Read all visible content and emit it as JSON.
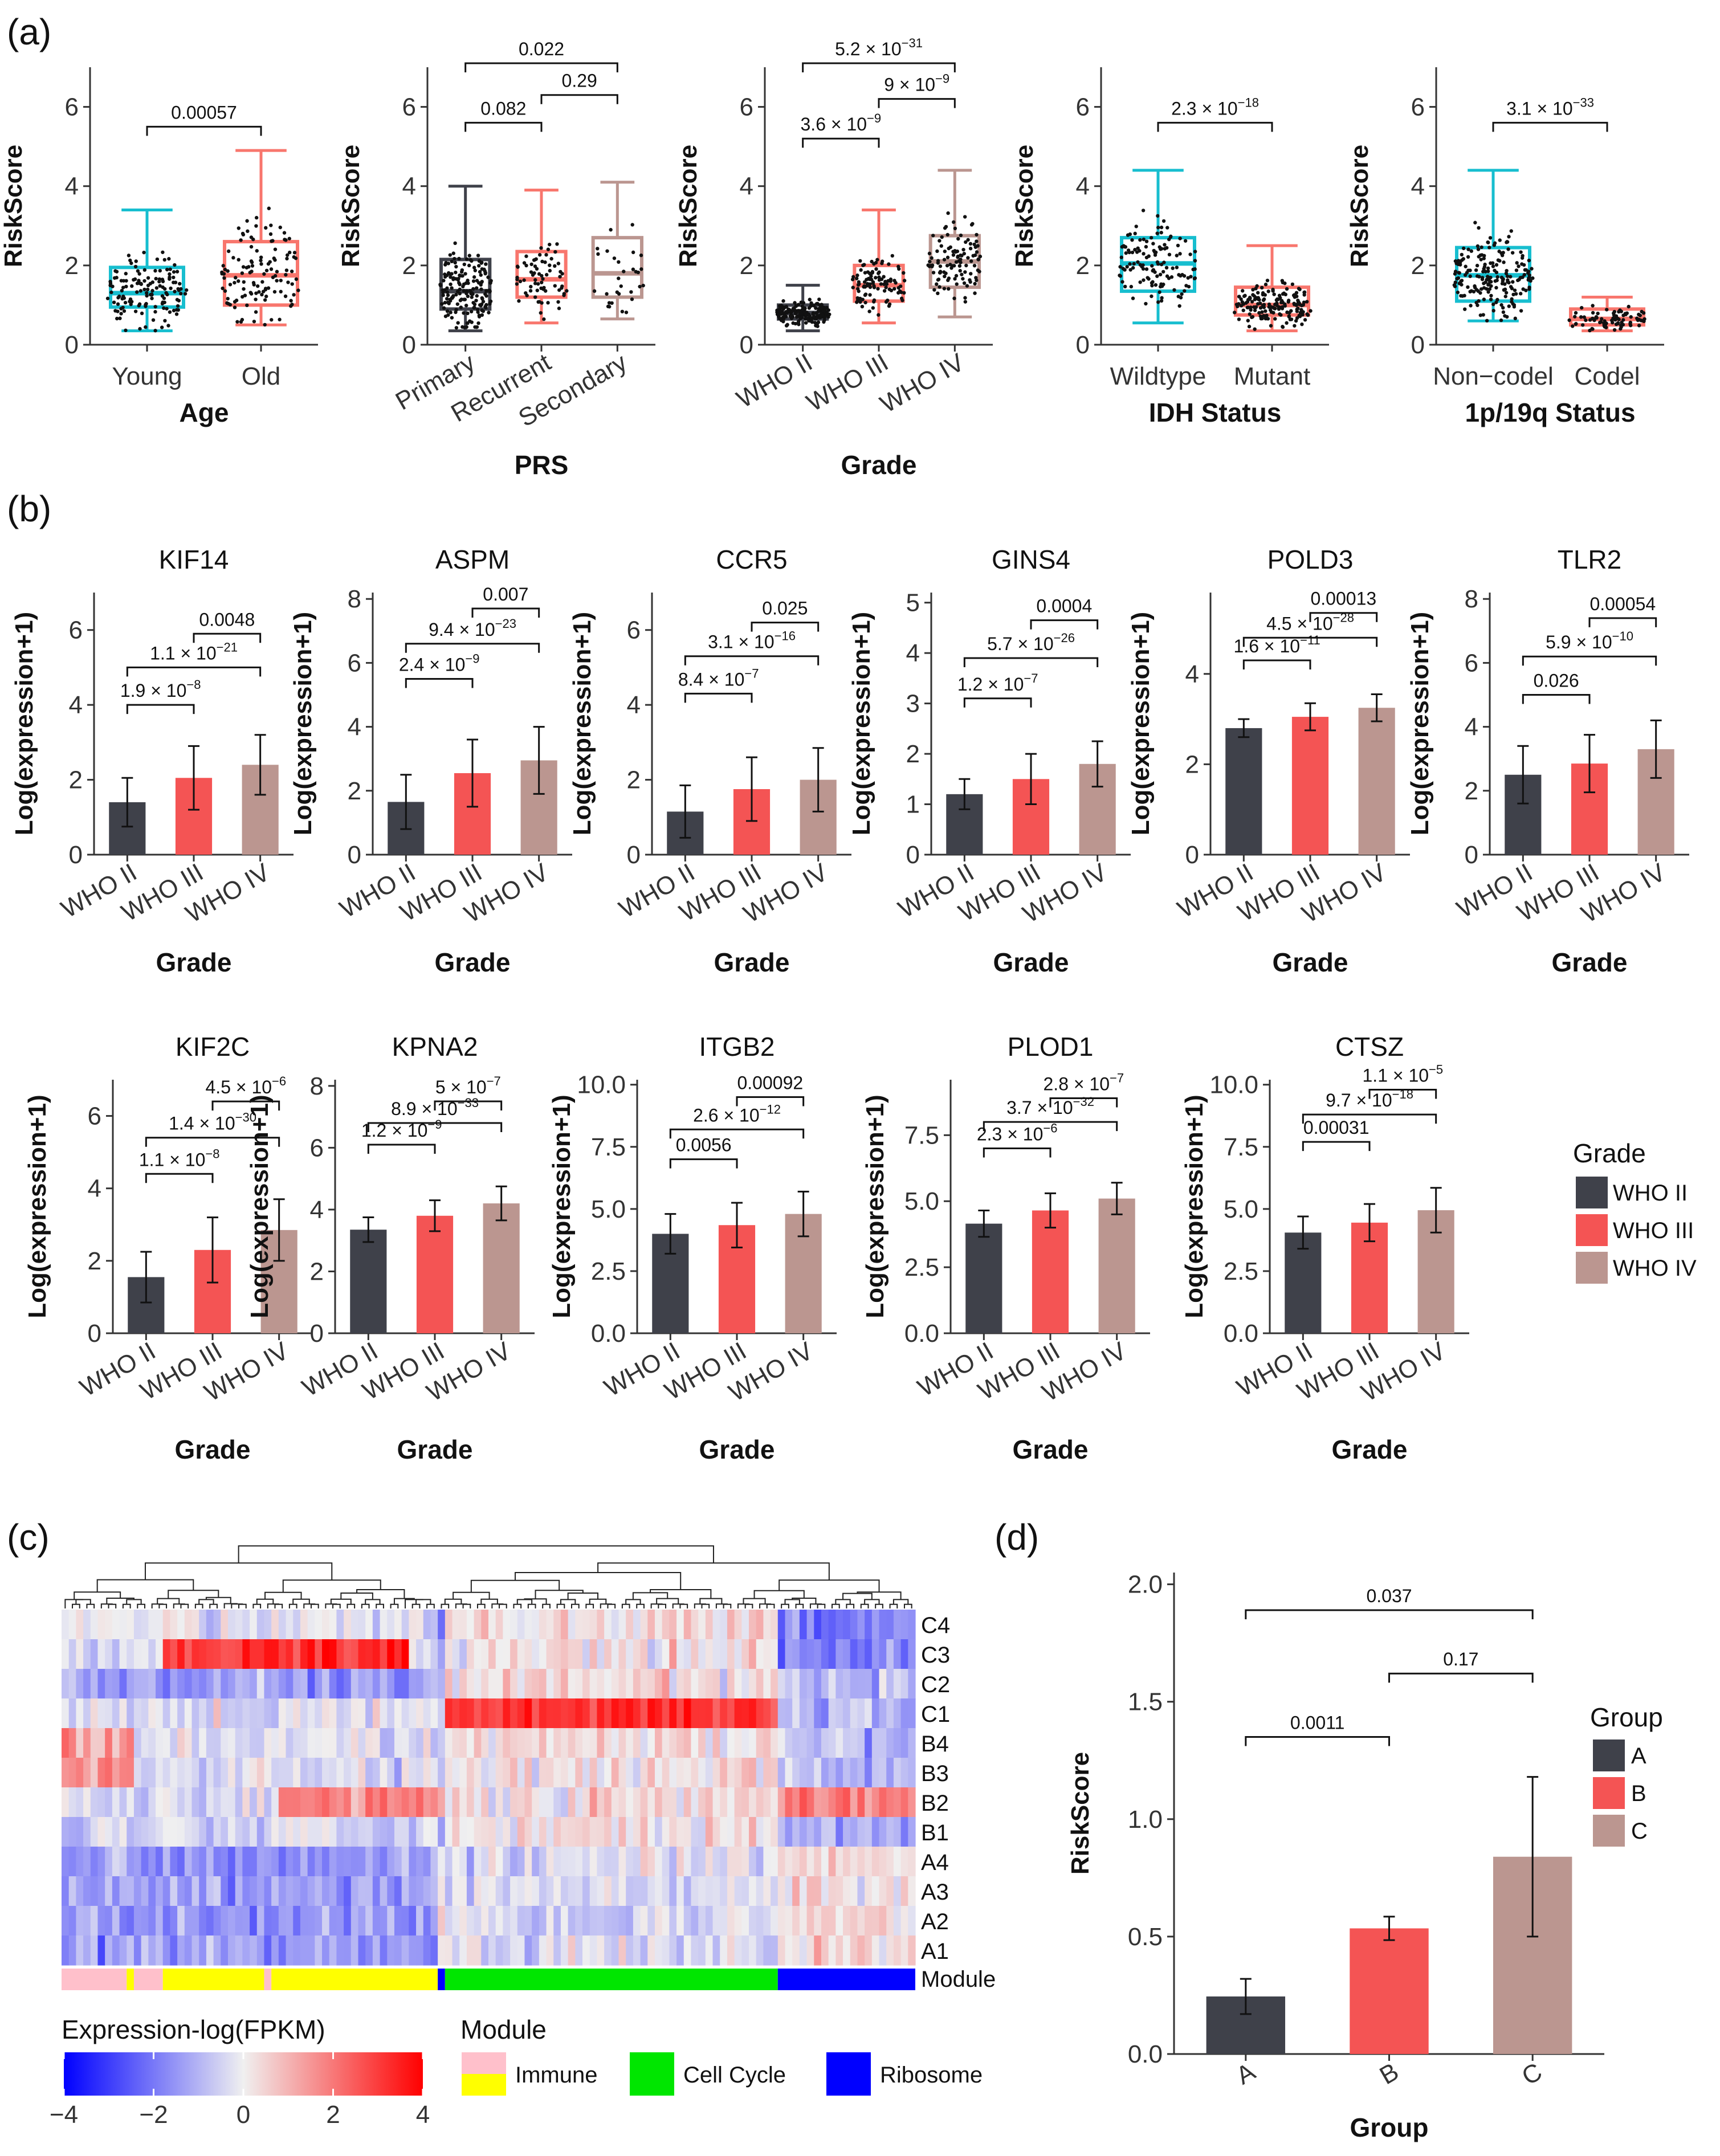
{
  "panel_labels": [
    "(a)",
    "(b)",
    "(c)",
    "(d)"
  ],
  "colors": {
    "teal": "#17becf",
    "coral": "#f8766d",
    "dark": "#3f414a",
    "red": "#f45454",
    "tan": "#bb9690",
    "heat_low": "#0000ff",
    "heat_mid": "#f0f0f0",
    "heat_high": "#ff0000",
    "immune": "#ffc0cb",
    "immune2": "#ffff00",
    "cellcycle": "#00e600",
    "ribosome": "#0000ff"
  },
  "chart_data": [
    {
      "id": "a1",
      "type": "box",
      "ylabel": "RiskScore",
      "xlabel": "Age",
      "ylim": [
        0,
        7
      ],
      "yticks": [
        0,
        2,
        4,
        6
      ],
      "categories": [
        "Young",
        "Old"
      ],
      "xrot": false,
      "box_colors": [
        "teal",
        "coral"
      ],
      "boxes": [
        {
          "min": 0.35,
          "q1": 0.95,
          "median": 1.3,
          "q3": 1.95,
          "max": 3.4,
          "n": 140
        },
        {
          "min": 0.5,
          "q1": 1.0,
          "median": 1.75,
          "q3": 2.6,
          "max": 4.9,
          "n": 120
        }
      ],
      "comparisons": [
        {
          "a": 0,
          "b": 1,
          "y": 5.5,
          "label": "0.00057"
        }
      ]
    },
    {
      "id": "a2",
      "type": "box",
      "ylabel": "RiskScore",
      "xlabel": "PRS",
      "ylim": [
        0,
        7
      ],
      "yticks": [
        0,
        2,
        4,
        6
      ],
      "categories": [
        "Primary",
        "Recurrent",
        "Secondary"
      ],
      "xrot": true,
      "box_colors": [
        "dark",
        "coral",
        "tan"
      ],
      "boxes": [
        {
          "min": 0.35,
          "q1": 0.9,
          "median": 1.35,
          "q3": 2.15,
          "max": 4.0,
          "n": 170
        },
        {
          "min": 0.55,
          "q1": 1.2,
          "median": 1.65,
          "q3": 2.35,
          "max": 3.9,
          "n": 70
        },
        {
          "min": 0.65,
          "q1": 1.2,
          "median": 1.8,
          "q3": 2.7,
          "max": 4.1,
          "n": 30
        }
      ],
      "comparisons": [
        {
          "a": 0,
          "b": 1,
          "y": 5.6,
          "label": "0.082"
        },
        {
          "a": 1,
          "b": 2,
          "y": 6.3,
          "label": "0.29"
        },
        {
          "a": 0,
          "b": 2,
          "y": 7.1,
          "label": "0.022"
        }
      ]
    },
    {
      "id": "a3",
      "type": "box",
      "ylabel": "RiskScore",
      "xlabel": "Grade",
      "ylim": [
        0,
        7
      ],
      "yticks": [
        0,
        2,
        4,
        6
      ],
      "categories": [
        "WHO II",
        "WHO III",
        "WHO IV"
      ],
      "xrot": true,
      "box_colors": [
        "dark",
        "coral",
        "tan"
      ],
      "boxes": [
        {
          "min": 0.35,
          "q1": 0.65,
          "median": 0.8,
          "q3": 1.0,
          "max": 1.5,
          "n": 170
        },
        {
          "min": 0.55,
          "q1": 1.1,
          "median": 1.5,
          "q3": 2.0,
          "max": 3.4,
          "n": 100
        },
        {
          "min": 0.7,
          "q1": 1.45,
          "median": 2.1,
          "q3": 2.75,
          "max": 4.4,
          "n": 110
        }
      ],
      "comparisons": [
        {
          "a": 0,
          "b": 1,
          "y": 5.2,
          "label": "3.6 × 10",
          "exp": "−9"
        },
        {
          "a": 1,
          "b": 2,
          "y": 6.2,
          "label": "9 × 10",
          "exp": "−9"
        },
        {
          "a": 0,
          "b": 2,
          "y": 7.1,
          "label": "5.2 × 10",
          "exp": "−31"
        }
      ]
    },
    {
      "id": "a4",
      "type": "box",
      "ylabel": "RiskScore",
      "xlabel": "IDH Status",
      "ylim": [
        0,
        7
      ],
      "yticks": [
        0,
        2,
        4,
        6
      ],
      "categories": [
        "Wildtype",
        "Mutant"
      ],
      "xrot": false,
      "box_colors": [
        "teal",
        "coral"
      ],
      "boxes": [
        {
          "min": 0.55,
          "q1": 1.35,
          "median": 2.05,
          "q3": 2.7,
          "max": 4.4,
          "n": 130
        },
        {
          "min": 0.35,
          "q1": 0.75,
          "median": 1.0,
          "q3": 1.45,
          "max": 2.5,
          "n": 170
        }
      ],
      "comparisons": [
        {
          "a": 0,
          "b": 1,
          "y": 5.6,
          "label": "2.3 × 10",
          "exp": "−18"
        }
      ]
    },
    {
      "id": "a5",
      "type": "box",
      "ylabel": "RiskScore",
      "xlabel": "1p/19q Status",
      "ylim": [
        0,
        7
      ],
      "yticks": [
        0,
        2,
        4,
        6
      ],
      "categories": [
        "Non−codel",
        "Codel"
      ],
      "xrot": false,
      "box_colors": [
        "teal",
        "coral"
      ],
      "boxes": [
        {
          "min": 0.6,
          "q1": 1.1,
          "median": 1.75,
          "q3": 2.45,
          "max": 4.4,
          "n": 200
        },
        {
          "min": 0.35,
          "q1": 0.5,
          "median": 0.65,
          "q3": 0.9,
          "max": 1.2,
          "n": 80
        }
      ],
      "comparisons": [
        {
          "a": 0,
          "b": 1,
          "y": 5.6,
          "label": "3.1 × 10",
          "exp": "−33"
        }
      ]
    },
    {
      "id": "b1",
      "type": "bar",
      "title": "KIF14",
      "ylabel": "Log(expression+1)",
      "xlabel": "Grade",
      "ylim": [
        0,
        7
      ],
      "yticks": [
        0,
        2,
        4,
        6
      ],
      "categories": [
        "WHO II",
        "WHO III",
        "WHO IV"
      ],
      "values": [
        1.4,
        2.05,
        2.4
      ],
      "err": [
        0.65,
        0.85,
        0.8
      ],
      "comparisons": [
        {
          "a": 0,
          "b": 1,
          "y": 4.0,
          "label": "1.9 × 10",
          "exp": "−8"
        },
        {
          "a": 0,
          "b": 2,
          "y": 5.0,
          "label": "1.1 × 10",
          "exp": "−21"
        },
        {
          "a": 1,
          "b": 2,
          "y": 5.9,
          "label": "0.0048"
        }
      ]
    },
    {
      "id": "b2",
      "type": "bar",
      "title": "ASPM",
      "ylabel": "Log(expression+1)",
      "xlabel": "Grade",
      "ylim": [
        0,
        8.2
      ],
      "yticks": [
        0,
        2,
        4,
        6,
        8
      ],
      "categories": [
        "WHO II",
        "WHO III",
        "WHO IV"
      ],
      "values": [
        1.65,
        2.55,
        2.95
      ],
      "err": [
        0.85,
        1.05,
        1.05
      ],
      "comparisons": [
        {
          "a": 0,
          "b": 1,
          "y": 5.5,
          "label": "2.4 × 10",
          "exp": "−9"
        },
        {
          "a": 0,
          "b": 2,
          "y": 6.6,
          "label": "9.4 × 10",
          "exp": "−23"
        },
        {
          "a": 1,
          "b": 2,
          "y": 7.7,
          "label": "0.007"
        }
      ]
    },
    {
      "id": "b3",
      "type": "bar",
      "title": "CCR5",
      "ylabel": "Log(expression+1)",
      "xlabel": "Grade",
      "ylim": [
        0,
        7
      ],
      "yticks": [
        0,
        2,
        4,
        6
      ],
      "categories": [
        "WHO II",
        "WHO III",
        "WHO IV"
      ],
      "values": [
        1.15,
        1.75,
        2.0
      ],
      "err": [
        0.7,
        0.85,
        0.85
      ],
      "comparisons": [
        {
          "a": 0,
          "b": 1,
          "y": 4.3,
          "label": "8.4 × 10",
          "exp": "−7"
        },
        {
          "a": 0,
          "b": 2,
          "y": 5.3,
          "label": "3.1 × 10",
          "exp": "−16"
        },
        {
          "a": 1,
          "b": 2,
          "y": 6.2,
          "label": "0.025"
        }
      ]
    },
    {
      "id": "b4",
      "type": "bar",
      "title": "GINS4",
      "ylabel": "Log(expression+1)",
      "xlabel": "Grade",
      "ylim": [
        0,
        5.2
      ],
      "yticks": [
        0,
        1,
        2,
        3,
        4,
        5
      ],
      "categories": [
        "WHO II",
        "WHO III",
        "WHO IV"
      ],
      "values": [
        1.2,
        1.5,
        1.8
      ],
      "err": [
        0.3,
        0.5,
        0.45
      ],
      "comparisons": [
        {
          "a": 0,
          "b": 1,
          "y": 3.1,
          "label": "1.2 × 10",
          "exp": "−7"
        },
        {
          "a": 0,
          "b": 2,
          "y": 3.9,
          "label": "5.7 × 10",
          "exp": "−26"
        },
        {
          "a": 1,
          "b": 2,
          "y": 4.65,
          "label": "0.0004"
        }
      ]
    },
    {
      "id": "b5",
      "type": "bar",
      "title": "POLD3",
      "ylabel": "Log(expression+1)",
      "xlabel": "Grade",
      "ylim": [
        0,
        5.8
      ],
      "yticks": [
        0,
        2,
        4
      ],
      "categories": [
        "WHO II",
        "WHO III",
        "WHO IV"
      ],
      "values": [
        2.8,
        3.05,
        3.25
      ],
      "err": [
        0.2,
        0.3,
        0.3
      ],
      "comparisons": [
        {
          "a": 0,
          "b": 1,
          "y": 4.3,
          "label": "1.6 × 10",
          "exp": "−11"
        },
        {
          "a": 0,
          "b": 2,
          "y": 4.8,
          "label": "4.5 × 10",
          "exp": "−28"
        },
        {
          "a": 1,
          "b": 2,
          "y": 5.35,
          "label": "0.00013"
        }
      ]
    },
    {
      "id": "b6",
      "type": "bar",
      "title": "TLR2",
      "ylabel": "Log(expression+1)",
      "xlabel": "Grade",
      "ylim": [
        0,
        8.2
      ],
      "yticks": [
        0,
        2,
        4,
        6,
        8
      ],
      "categories": [
        "WHO II",
        "WHO III",
        "WHO IV"
      ],
      "values": [
        2.5,
        2.85,
        3.3
      ],
      "err": [
        0.9,
        0.9,
        0.9
      ],
      "comparisons": [
        {
          "a": 0,
          "b": 1,
          "y": 5.0,
          "label": "0.026"
        },
        {
          "a": 0,
          "b": 2,
          "y": 6.2,
          "label": "5.9 × 10",
          "exp": "−10"
        },
        {
          "a": 1,
          "b": 2,
          "y": 7.4,
          "label": "0.00054"
        }
      ]
    },
    {
      "id": "b7",
      "type": "bar",
      "title": "KIF2C",
      "ylabel": "Log(expression+1)",
      "xlabel": "Grade",
      "ylim": [
        0,
        7
      ],
      "yticks": [
        0,
        2,
        4,
        6
      ],
      "categories": [
        "WHO II",
        "WHO III",
        "WHO IV"
      ],
      "values": [
        1.55,
        2.3,
        2.85
      ],
      "err": [
        0.7,
        0.9,
        0.85
      ],
      "comparisons": [
        {
          "a": 0,
          "b": 1,
          "y": 4.4,
          "label": "1.1 × 10",
          "exp": "−8"
        },
        {
          "a": 0,
          "b": 2,
          "y": 5.4,
          "label": "1.4 × 10",
          "exp": "−30"
        },
        {
          "a": 1,
          "b": 2,
          "y": 6.4,
          "label": "4.5 × 10",
          "exp": "−6"
        }
      ]
    },
    {
      "id": "b8",
      "type": "bar",
      "title": "KPNA2",
      "ylabel": "Log(expression+1)",
      "xlabel": "Grade",
      "ylim": [
        0,
        8.2
      ],
      "yticks": [
        0,
        2,
        4,
        6,
        8
      ],
      "categories": [
        "WHO II",
        "WHO III",
        "WHO IV"
      ],
      "values": [
        3.35,
        3.8,
        4.2
      ],
      "err": [
        0.4,
        0.5,
        0.55
      ],
      "comparisons": [
        {
          "a": 0,
          "b": 1,
          "y": 6.1,
          "label": "1.2 × 10",
          "exp": "−9"
        },
        {
          "a": 0,
          "b": 2,
          "y": 6.8,
          "label": "8.9 × 10",
          "exp": "−33"
        },
        {
          "a": 1,
          "b": 2,
          "y": 7.5,
          "label": "5 × 10",
          "exp": "−7"
        }
      ]
    },
    {
      "id": "b9",
      "type": "bar",
      "title": "ITGB2",
      "ylabel": "Log(expression+1)",
      "xlabel": "Grade",
      "ylim": [
        0,
        10.2
      ],
      "yticks": [
        0.0,
        2.5,
        5.0,
        7.5,
        10.0
      ],
      "yticklabels": [
        "0.0",
        "2.5",
        "5.0",
        "7.5",
        "10.0"
      ],
      "categories": [
        "WHO II",
        "WHO III",
        "WHO IV"
      ],
      "values": [
        4.0,
        4.35,
        4.8
      ],
      "err": [
        0.8,
        0.9,
        0.9
      ],
      "comparisons": [
        {
          "a": 0,
          "b": 1,
          "y": 7.0,
          "label": "0.0056"
        },
        {
          "a": 0,
          "b": 2,
          "y": 8.2,
          "label": "2.6 × 10",
          "exp": "−12"
        },
        {
          "a": 1,
          "b": 2,
          "y": 9.5,
          "label": "0.00092"
        }
      ]
    },
    {
      "id": "b10",
      "type": "bar",
      "title": "PLOD1",
      "ylabel": "Log(expression+1)",
      "xlabel": "Grade",
      "ylim": [
        0,
        9.6
      ],
      "yticks": [
        0.0,
        2.5,
        5.0,
        7.5
      ],
      "yticklabels": [
        "0.0",
        "2.5",
        "5.0",
        "7.5"
      ],
      "categories": [
        "WHO II",
        "WHO III",
        "WHO IV"
      ],
      "values": [
        4.15,
        4.65,
        5.1
      ],
      "err": [
        0.5,
        0.65,
        0.6
      ],
      "comparisons": [
        {
          "a": 0,
          "b": 1,
          "y": 7.0,
          "label": "2.3 × 10",
          "exp": "−6"
        },
        {
          "a": 0,
          "b": 2,
          "y": 8.0,
          "label": "3.7 × 10",
          "exp": "−32"
        },
        {
          "a": 1,
          "b": 2,
          "y": 8.9,
          "label": "2.8 × 10",
          "exp": "−7"
        }
      ]
    },
    {
      "id": "b11",
      "type": "bar",
      "title": "CTSZ",
      "ylabel": "Log(expression+1)",
      "xlabel": "Grade",
      "ylim": [
        0,
        10.2
      ],
      "yticks": [
        0.0,
        2.5,
        5.0,
        7.5,
        10.0
      ],
      "yticklabels": [
        "0.0",
        "2.5",
        "5.0",
        "7.5",
        "10.0"
      ],
      "categories": [
        "WHO II",
        "WHO III",
        "WHO IV"
      ],
      "values": [
        4.05,
        4.45,
        4.95
      ],
      "err": [
        0.65,
        0.75,
        0.9
      ],
      "comparisons": [
        {
          "a": 0,
          "b": 1,
          "y": 7.7,
          "label": "0.00031"
        },
        {
          "a": 0,
          "b": 2,
          "y": 8.8,
          "label": "9.7 × 10",
          "exp": "−18"
        },
        {
          "a": 1,
          "b": 2,
          "y": 9.8,
          "label": "1.1 × 10",
          "exp": "−5"
        }
      ]
    },
    {
      "id": "c",
      "type": "heatmap",
      "rows": [
        "C4",
        "C3",
        "C2",
        "C1",
        "B4",
        "B3",
        "B2",
        "B1",
        "A4",
        "A3",
        "A2",
        "A1"
      ],
      "ncols": 118,
      "module_label": "Module",
      "modules": [
        {
          "name": "Immune",
          "color": "immune",
          "from": 0,
          "to": 9
        },
        {
          "name": "Immune",
          "color": "immune2",
          "from": 9,
          "to": 10
        },
        {
          "name": "Immune",
          "color": "immune",
          "from": 10,
          "to": 14
        },
        {
          "name": "Immune",
          "color": "immune2",
          "from": 14,
          "to": 28
        },
        {
          "name": "Immune",
          "color": "immune",
          "from": 28,
          "to": 29
        },
        {
          "name": "Immune",
          "color": "immune2",
          "from": 29,
          "to": 52
        },
        {
          "name": "Ribosome",
          "color": "ribosome",
          "from": 52,
          "to": 53
        },
        {
          "name": "Cell Cycle",
          "color": "cellcycle",
          "from": 53,
          "to": 99
        },
        {
          "name": "Ribosome",
          "color": "ribosome",
          "from": 99,
          "to": 118
        }
      ],
      "color_scale_title": "Expression-log(FPKM)",
      "color_range": [
        -4,
        4
      ],
      "color_ticks": [
        "−4",
        "−2",
        "0",
        "2",
        "4"
      ],
      "module_legend_title": "Module",
      "module_legend": [
        {
          "label": "Immune",
          "colors": [
            "immune",
            "immune2"
          ]
        },
        {
          "label": "Cell Cycle",
          "colors": [
            "cellcycle"
          ]
        },
        {
          "label": "Ribosome",
          "colors": [
            "ribosome"
          ]
        }
      ]
    },
    {
      "id": "d",
      "type": "bar",
      "ylabel": "RiskScore",
      "xlabel": "Group",
      "ylim": [
        0,
        2.05
      ],
      "yticks": [
        0.0,
        0.5,
        1.0,
        1.5,
        2.0
      ],
      "yticklabels": [
        "0.0",
        "0.5",
        "1.0",
        "1.5",
        "2.0"
      ],
      "categories": [
        "A",
        "B",
        "C"
      ],
      "values": [
        0.245,
        0.535,
        0.84
      ],
      "err": [
        0.075,
        0.05,
        0.34
      ],
      "comparisons": [
        {
          "a": 0,
          "b": 1,
          "y": 1.35,
          "label": "0.0011"
        },
        {
          "a": 1,
          "b": 2,
          "y": 1.62,
          "label": "0.17"
        },
        {
          "a": 0,
          "b": 2,
          "y": 1.89,
          "label": "0.037"
        }
      ]
    }
  ],
  "legends": {
    "grade": {
      "title": "Grade",
      "items": [
        {
          "label": "WHO II",
          "color": "dark"
        },
        {
          "label": "WHO III",
          "color": "red"
        },
        {
          "label": "WHO IV",
          "color": "tan"
        }
      ]
    },
    "group": {
      "title": "Group",
      "items": [
        {
          "label": "A",
          "color": "dark"
        },
        {
          "label": "B",
          "color": "red"
        },
        {
          "label": "C",
          "color": "tan"
        }
      ]
    }
  }
}
